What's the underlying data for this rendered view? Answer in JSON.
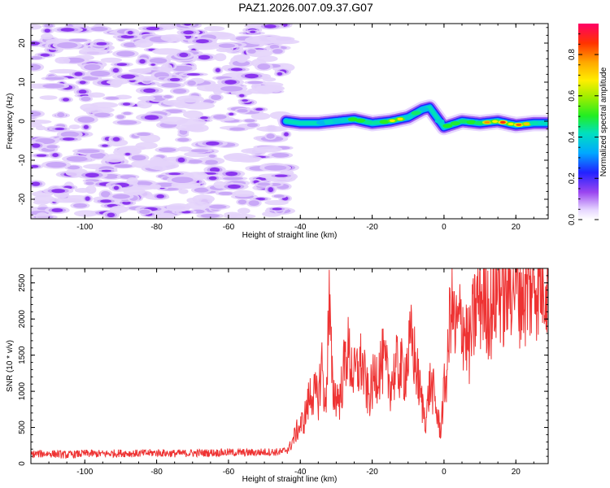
{
  "title": "PAZ1.2026.007.09.37.G07",
  "chart_data": [
    {
      "type": "heatmap",
      "xlabel": "Height of straight line (km)",
      "ylabel": "Frequency (Hz)",
      "xlim": [
        -115,
        29
      ],
      "ylim": [
        -25,
        25
      ],
      "xticks": [
        -100,
        -80,
        -60,
        -40,
        -20,
        0,
        20
      ],
      "yticks": [
        -20,
        -10,
        0,
        10,
        20
      ],
      "colorbar": {
        "label": "Normalized spectral amplitude",
        "range": [
          0,
          0.95
        ],
        "ticks": [
          0.0,
          0.2,
          0.4,
          0.6,
          0.8
        ]
      },
      "noise_region_km": [
        -115,
        -44
      ],
      "signal_track": {
        "x": [
          -44,
          -40,
          -35,
          -30,
          -25,
          -20,
          -15,
          -10,
          -6,
          -4,
          -2,
          0,
          5,
          10,
          15,
          20,
          25,
          29
        ],
        "frequency_hz": [
          0,
          -0.5,
          -0.5,
          0,
          0.5,
          -0.5,
          0,
          1,
          3,
          3.5,
          1,
          -1.5,
          0,
          -0.5,
          0,
          -1,
          -0.5,
          -0.5
        ],
        "peak_amplitude": [
          0.35,
          0.45,
          0.5,
          0.6,
          0.65,
          0.6,
          0.85,
          0.7,
          0.5,
          0.35,
          0.4,
          0.75,
          0.7,
          0.75,
          0.9,
          0.95,
          0.6,
          0.5
        ]
      }
    },
    {
      "type": "line",
      "xlabel": "Height of straight line (km)",
      "ylabel": "SNR (10 * v/v)",
      "xlim": [
        -115,
        29
      ],
      "ylim": [
        0,
        2700
      ],
      "xticks": [
        -100,
        -80,
        -60,
        -40,
        -20,
        0,
        20
      ],
      "yticks": [
        0,
        500,
        1000,
        1500,
        2000,
        2500
      ],
      "color": "#ee3333",
      "series": [
        {
          "name": "SNR",
          "x": [
            -115,
            -110,
            -105,
            -100,
            -95,
            -90,
            -85,
            -80,
            -75,
            -70,
            -65,
            -60,
            -55,
            -50,
            -45,
            -43,
            -41,
            -39,
            -37,
            -35,
            -34,
            -33,
            -32,
            -31,
            -29,
            -27,
            -25,
            -23,
            -21,
            -19,
            -17,
            -15,
            -13,
            -11,
            -9,
            -7,
            -6,
            -5,
            -4,
            -3,
            -2,
            -1,
            0,
            1,
            2,
            3,
            5,
            7,
            9,
            11,
            13,
            15,
            17,
            19,
            21,
            23,
            25,
            27,
            29
          ],
          "y": [
            130,
            140,
            120,
            140,
            135,
            145,
            140,
            150,
            140,
            145,
            150,
            155,
            150,
            160,
            160,
            220,
            450,
            600,
            1000,
            900,
            1400,
            700,
            2200,
            1000,
            900,
            1600,
            1200,
            1400,
            900,
            1250,
            1400,
            1100,
            1350,
            1250,
            1700,
            1100,
            800,
            600,
            1100,
            1000,
            700,
            450,
            1000,
            1350,
            2400,
            1800,
            2000,
            1600,
            2200,
            2350,
            2100,
            2550,
            2300,
            2650,
            2450,
            2350,
            2550,
            2600,
            2650
          ]
        }
      ]
    }
  ]
}
